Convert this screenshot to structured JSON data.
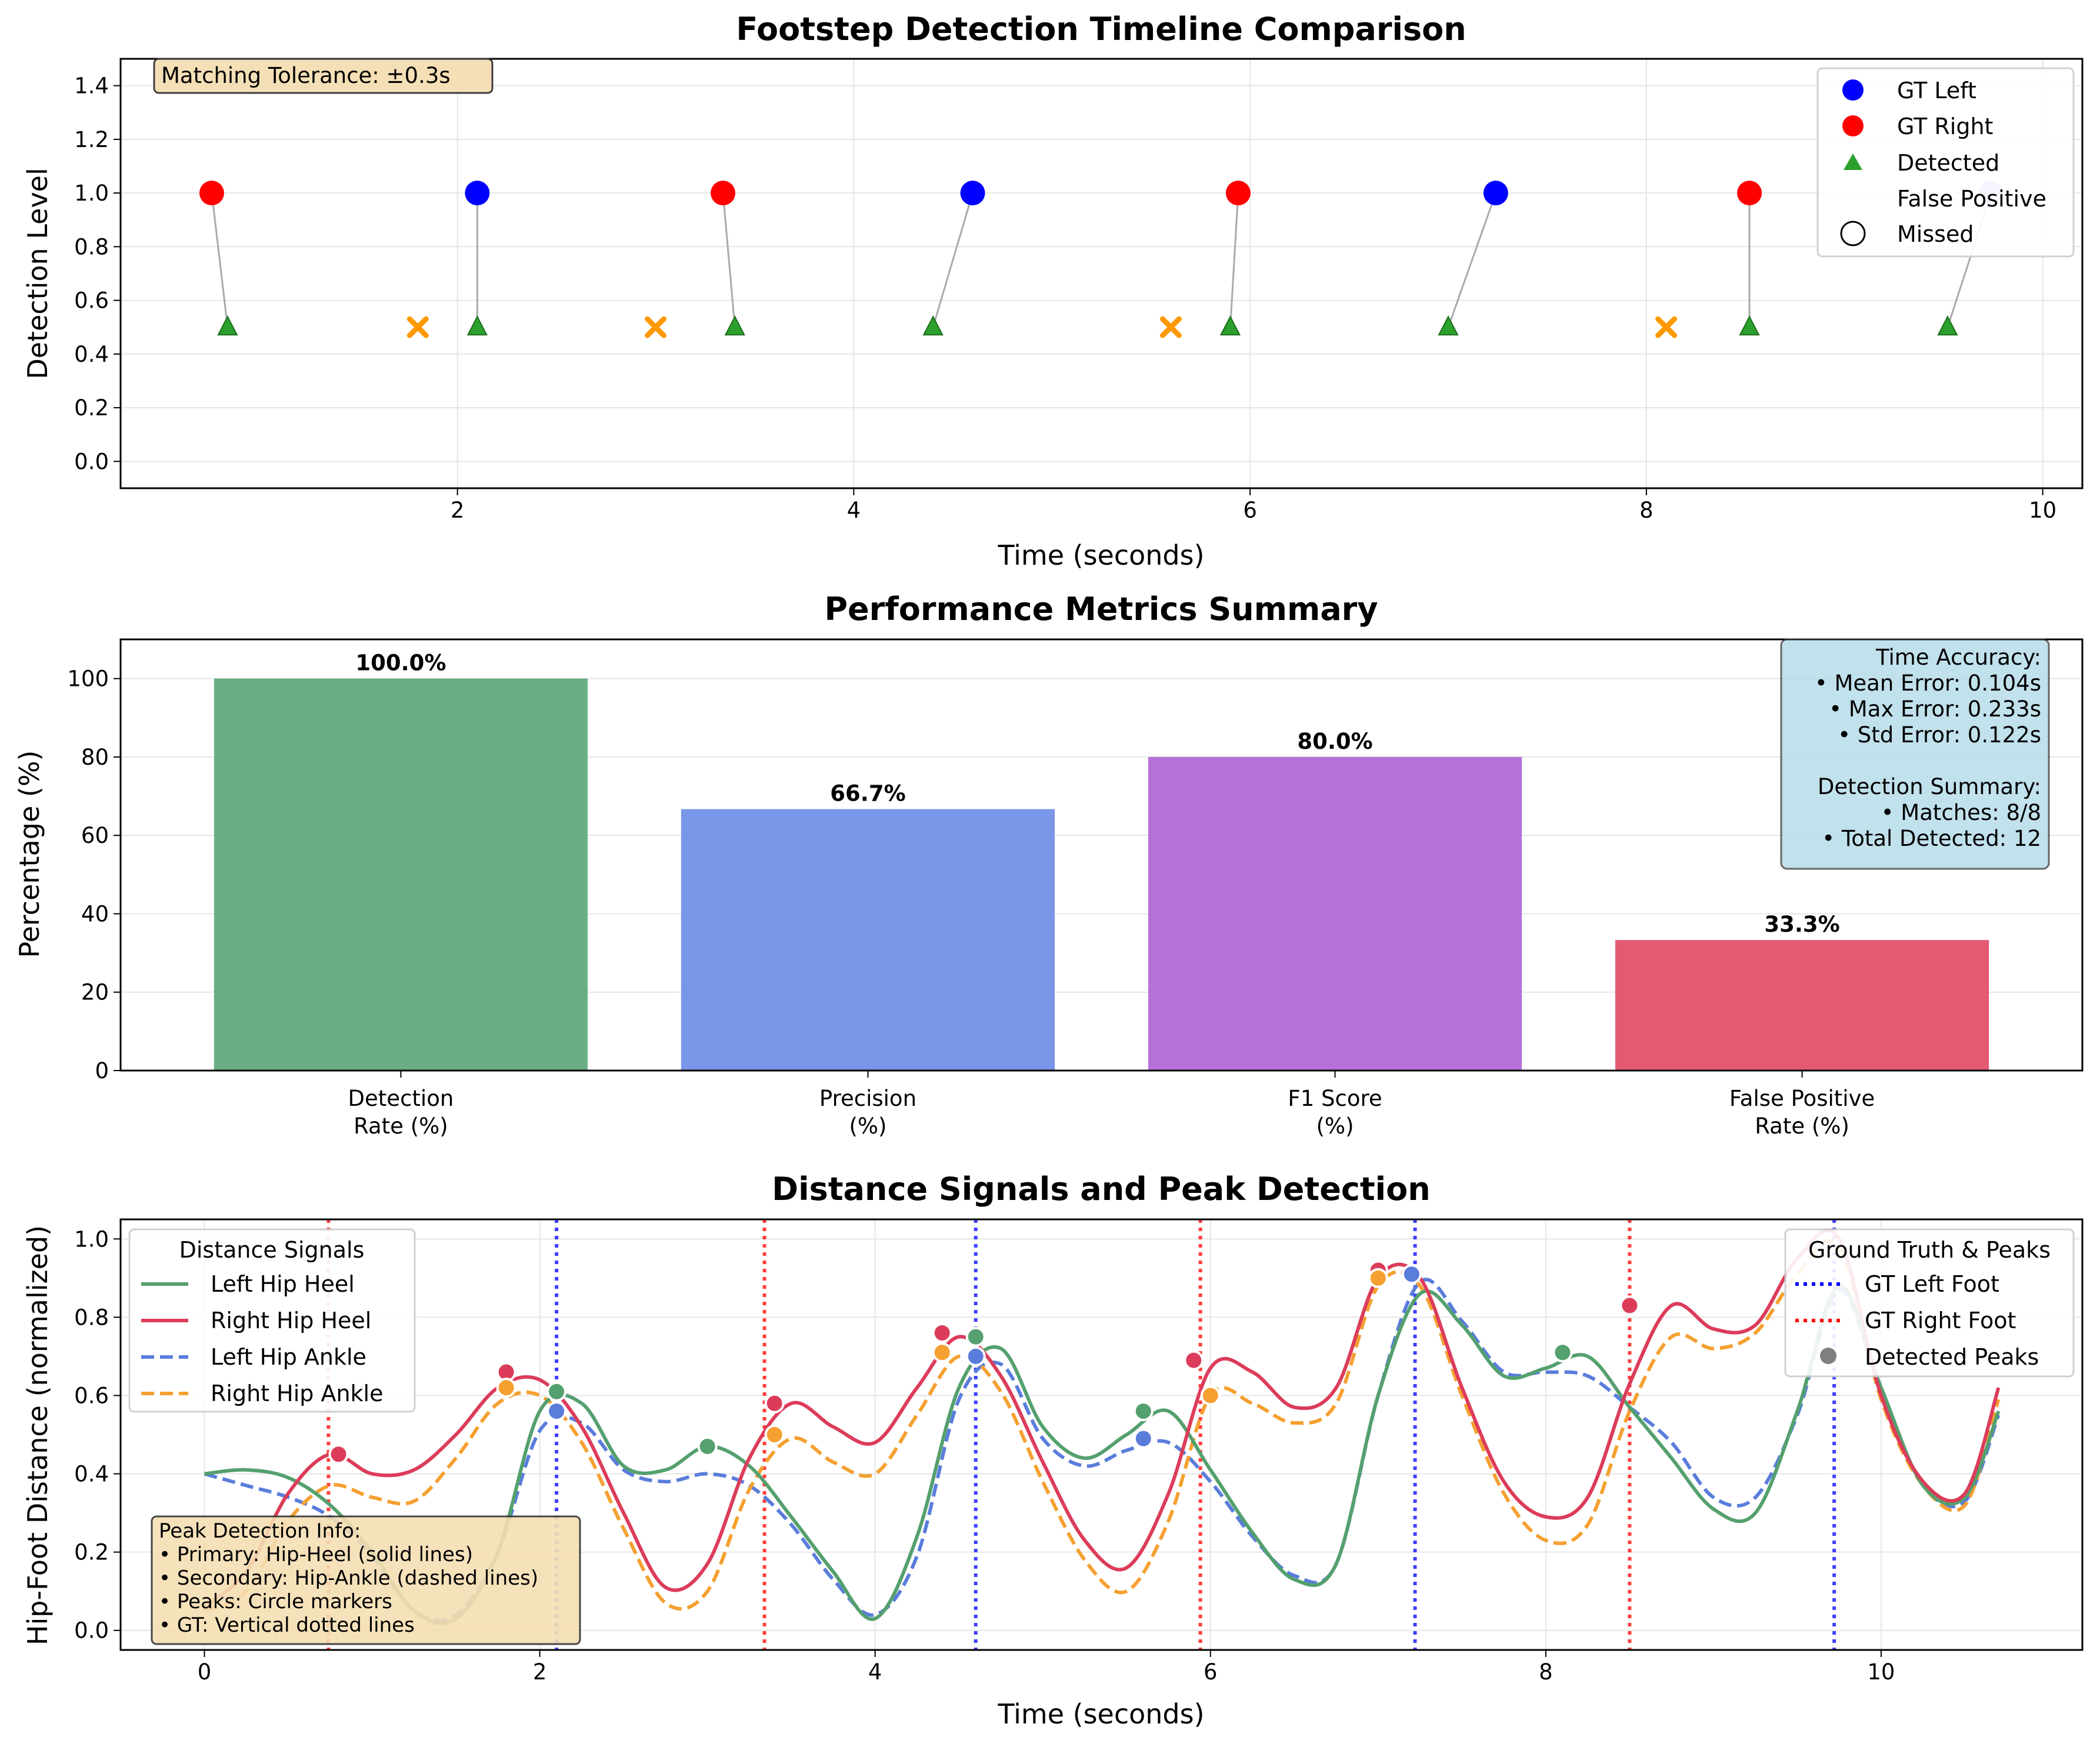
{
  "chart_data": [
    {
      "type": "scatter",
      "title": "Footstep Detection Timeline Comparison",
      "xlabel": "Time (seconds)",
      "ylabel": "Detection Level",
      "xlim": [
        0.3,
        10.2
      ],
      "ylim": [
        -0.1,
        1.5
      ],
      "xticks": [
        2,
        4,
        6,
        8,
        10
      ],
      "yticks": [
        0.0,
        0.2,
        0.4,
        0.6,
        0.8,
        1.0,
        1.2,
        1.4
      ],
      "grid": true,
      "annotation": "Matching Tolerance: ±0.3s",
      "legend_position": "top-right",
      "legend": [
        "GT Left",
        "GT Right",
        "Detected",
        "False Positive",
        "Missed"
      ],
      "gt_left": [
        2.1,
        4.6,
        7.24,
        9.74
      ],
      "gt_right": [
        0.76,
        3.34,
        5.94,
        8.52
      ],
      "gt_level": 1.0,
      "detected": [
        0.84,
        2.1,
        3.4,
        4.4,
        5.9,
        7.0,
        8.52,
        9.52
      ],
      "false_positive": [
        1.8,
        3.0,
        5.6,
        8.1
      ],
      "detected_level": 0.5,
      "matches": [
        [
          0.76,
          0.84
        ],
        [
          2.1,
          2.1
        ],
        [
          3.34,
          3.4
        ],
        [
          4.6,
          4.4
        ],
        [
          5.94,
          5.9
        ],
        [
          7.24,
          7.0
        ],
        [
          8.52,
          8.52
        ],
        [
          9.74,
          9.52
        ]
      ],
      "colors": {
        "gt_left": "#0000ff",
        "gt_right": "#ff0000",
        "detected": "#2ca02c",
        "false_positive": "#ff9900",
        "match_line": "#aaaaaa"
      }
    },
    {
      "type": "bar",
      "title": "Performance Metrics Summary",
      "ylabel": "Percentage (%)",
      "ylim": [
        0,
        110
      ],
      "yticks": [
        0,
        20,
        40,
        60,
        80,
        100
      ],
      "grid": true,
      "categories": [
        [
          "Detection",
          "Rate (%)"
        ],
        [
          "Precision",
          "(%)"
        ],
        [
          "F1 Score",
          "(%)"
        ],
        [
          "False Positive",
          "Rate (%)"
        ]
      ],
      "values": [
        100.0,
        66.7,
        80.0,
        33.3
      ],
      "value_labels": [
        "100.0%",
        "66.7%",
        "80.0%",
        "33.3%"
      ],
      "colors": [
        "#6aae86",
        "#7a96e8",
        "#b571d9",
        "#e55a73"
      ],
      "info_box": [
        "Time Accuracy:",
        "• Mean Error: 0.104s",
        "• Max Error: 0.233s",
        "• Std Error: 0.122s",
        "",
        "Detection Summary:",
        "• Matches: 8/8",
        "• Total Detected: 12"
      ]
    },
    {
      "type": "line",
      "title": "Distance Signals and Peak Detection",
      "xlabel": "Time (seconds)",
      "ylabel": "Hip-Foot Distance (normalized)",
      "xlim": [
        -0.5,
        11.2
      ],
      "ylim": [
        -0.05,
        1.05
      ],
      "xticks": [
        0,
        2,
        4,
        6,
        8,
        10
      ],
      "yticks": [
        0.0,
        0.2,
        0.4,
        0.6,
        0.8,
        1.0
      ],
      "grid": true,
      "legend_signals_title": "Distance Signals",
      "legend_gt_title": "Ground Truth & Peaks",
      "legend_gt": [
        "GT Left Foot",
        "GT Right Foot",
        "Detected Peaks"
      ],
      "gt_left_lines": [
        2.1,
        4.6,
        7.22,
        9.72
      ],
      "gt_right_lines": [
        0.74,
        3.34,
        5.94,
        8.5
      ],
      "info_box": [
        "Peak Detection Info:",
        "• Primary: Hip-Heel (solid lines)",
        "• Secondary: Hip-Ankle (dashed lines)",
        "• Peaks: Circle markers",
        "• GT: Vertical dotted lines"
      ],
      "x": [
        0,
        0.25,
        0.5,
        0.75,
        1.0,
        1.25,
        1.5,
        1.75,
        2.0,
        2.25,
        2.5,
        2.75,
        3.0,
        3.25,
        3.5,
        3.75,
        4.0,
        4.25,
        4.5,
        4.75,
        5.0,
        5.25,
        5.5,
        5.75,
        6.0,
        6.25,
        6.5,
        6.75,
        7.0,
        7.25,
        7.5,
        7.75,
        8.0,
        8.25,
        8.5,
        8.75,
        9.0,
        9.25,
        9.5,
        9.75,
        10.0,
        10.25,
        10.5,
        10.7
      ],
      "series": [
        {
          "name": "Left Hip Heel",
          "style": "solid",
          "color": "#54a06e",
          "values": [
            0.4,
            0.41,
            0.39,
            0.32,
            0.2,
            0.05,
            0.03,
            0.2,
            0.56,
            0.58,
            0.42,
            0.41,
            0.47,
            0.42,
            0.29,
            0.15,
            0.03,
            0.24,
            0.62,
            0.72,
            0.52,
            0.44,
            0.5,
            0.56,
            0.41,
            0.25,
            0.13,
            0.17,
            0.6,
            0.86,
            0.78,
            0.65,
            0.67,
            0.7,
            0.57,
            0.44,
            0.31,
            0.3,
            0.56,
            0.88,
            0.62,
            0.37,
            0.34,
            0.56
          ],
          "peaks": [
            [
              3.0,
              0.47
            ],
            [
              5.6,
              0.56
            ],
            [
              8.1,
              0.71
            ],
            [
              2.1,
              0.61
            ],
            [
              4.6,
              0.75
            ]
          ]
        },
        {
          "name": "Right Hip Heel",
          "style": "solid",
          "color": "#dc3c5a",
          "values": [
            0.06,
            0.15,
            0.35,
            0.45,
            0.4,
            0.41,
            0.5,
            0.62,
            0.64,
            0.52,
            0.3,
            0.11,
            0.17,
            0.44,
            0.58,
            0.52,
            0.48,
            0.62,
            0.75,
            0.65,
            0.43,
            0.23,
            0.16,
            0.35,
            0.67,
            0.66,
            0.57,
            0.62,
            0.9,
            0.9,
            0.62,
            0.38,
            0.29,
            0.34,
            0.63,
            0.83,
            0.77,
            0.78,
            0.95,
            1.0,
            0.6,
            0.38,
            0.35,
            0.62
          ],
          "peaks": [
            [
              0.8,
              0.45
            ],
            [
              1.8,
              0.66
            ],
            [
              3.4,
              0.58
            ],
            [
              4.4,
              0.76
            ],
            [
              5.9,
              0.69
            ],
            [
              7.0,
              0.92
            ],
            [
              8.5,
              0.83
            ]
          ]
        },
        {
          "name": "Left Hip Ankle",
          "style": "dashed",
          "color": "#5a7ddc",
          "values": [
            0.4,
            0.37,
            0.34,
            0.29,
            0.19,
            0.05,
            0.04,
            0.2,
            0.51,
            0.53,
            0.41,
            0.38,
            0.4,
            0.37,
            0.27,
            0.13,
            0.04,
            0.19,
            0.59,
            0.68,
            0.49,
            0.42,
            0.46,
            0.48,
            0.38,
            0.24,
            0.14,
            0.17,
            0.6,
            0.89,
            0.79,
            0.66,
            0.66,
            0.65,
            0.57,
            0.48,
            0.34,
            0.34,
            0.55,
            0.87,
            0.61,
            0.37,
            0.33,
            0.55
          ],
          "peaks": [
            [
              2.1,
              0.56
            ],
            [
              4.6,
              0.7
            ],
            [
              5.6,
              0.49
            ],
            [
              7.2,
              0.91
            ]
          ]
        },
        {
          "name": "Right Hip Ankle",
          "style": "dashed",
          "color": "#f5a030",
          "values": [
            0.05,
            0.1,
            0.28,
            0.37,
            0.34,
            0.33,
            0.44,
            0.58,
            0.6,
            0.48,
            0.26,
            0.07,
            0.1,
            0.36,
            0.49,
            0.43,
            0.4,
            0.55,
            0.7,
            0.61,
            0.38,
            0.18,
            0.1,
            0.28,
            0.6,
            0.58,
            0.53,
            0.58,
            0.88,
            0.88,
            0.6,
            0.35,
            0.23,
            0.27,
            0.56,
            0.75,
            0.72,
            0.76,
            0.91,
            0.98,
            0.59,
            0.37,
            0.32,
            0.59
          ],
          "peaks": [
            [
              1.8,
              0.62
            ],
            [
              3.4,
              0.5
            ],
            [
              4.4,
              0.71
            ],
            [
              6.0,
              0.6
            ],
            [
              7.0,
              0.9
            ]
          ]
        }
      ]
    }
  ]
}
